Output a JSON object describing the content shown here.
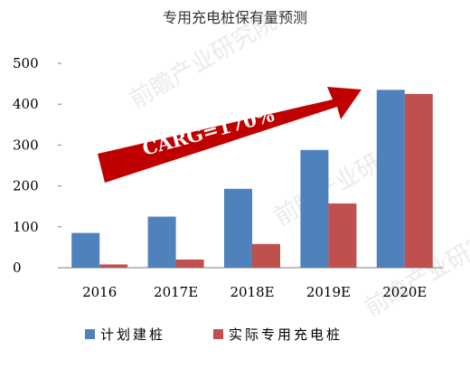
{
  "chart_data": {
    "type": "bar",
    "title": "专用充电桩保有量预测",
    "categories": [
      "2016",
      "2017E",
      "2018E",
      "2019E",
      "2020E"
    ],
    "series": [
      {
        "name": "计划建桩",
        "values": [
          85,
          125,
          193,
          288,
          435
        ],
        "color": "#4f81bd"
      },
      {
        "name": "实际专用充电桩",
        "values": [
          8,
          20,
          58,
          157,
          425
        ],
        "color": "#c0504d"
      }
    ],
    "ylim": [
      0,
      500
    ],
    "yticks": [
      0,
      100,
      200,
      300,
      400,
      500
    ],
    "grid": false,
    "legend": "bottom",
    "annotation": {
      "text": "CARG=170%",
      "color": "#c00000"
    },
    "watermark": "前瞻产业研究院"
  }
}
